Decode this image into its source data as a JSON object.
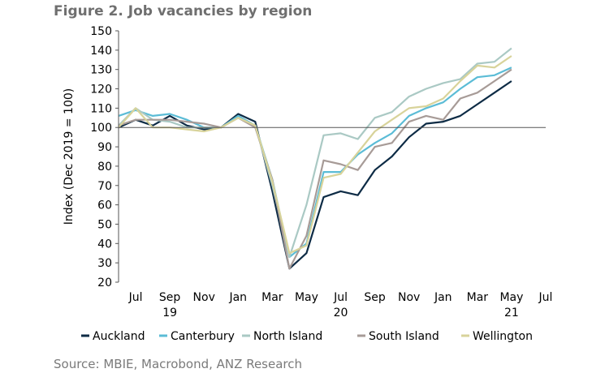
{
  "title": "Figure 2. Job vacancies by region",
  "source": "Source: MBIE, Macrobond, ANZ Research",
  "chart_data": {
    "type": "line",
    "ylabel": "Index (Dec 2019 = 100)",
    "ylim": [
      20,
      150
    ],
    "yticks": [
      20,
      30,
      40,
      50,
      60,
      70,
      80,
      90,
      100,
      110,
      120,
      130,
      140,
      150
    ],
    "reference_line": 100,
    "x": [
      "2019-06",
      "2019-07",
      "2019-08",
      "2019-09",
      "2019-10",
      "2019-11",
      "2019-12",
      "2020-01",
      "2020-02",
      "2020-03",
      "2020-04",
      "2020-05",
      "2020-06",
      "2020-07",
      "2020-08",
      "2020-09",
      "2020-10",
      "2020-11",
      "2020-12",
      "2021-01",
      "2021-02",
      "2021-03",
      "2021-04",
      "2021-05"
    ],
    "x_range": [
      "2019-06",
      "2021-07"
    ],
    "xticks": [
      "Jul",
      "Sep",
      "Nov",
      "Jan",
      "Mar",
      "May",
      "Jul",
      "Sep",
      "Nov",
      "Jan",
      "Mar",
      "May",
      "Jul"
    ],
    "xtick_months": [
      "2019-07",
      "2019-09",
      "2019-11",
      "2020-01",
      "2020-03",
      "2020-05",
      "2020-07",
      "2020-09",
      "2020-11",
      "2021-01",
      "2021-03",
      "2021-05",
      "2021-07"
    ],
    "year_labels": [
      {
        "label": "19",
        "month": "2019-09"
      },
      {
        "label": "20",
        "month": "2020-07"
      },
      {
        "label": "21",
        "month": "2021-05"
      }
    ],
    "legend_position": "bottom",
    "series": [
      {
        "name": "Auckland",
        "color": "#0d2b45",
        "values": [
          100,
          104,
          101,
          106,
          101,
          99,
          100,
          107,
          103,
          67,
          27,
          35,
          64,
          67,
          65,
          78,
          85,
          95,
          102,
          103,
          106,
          112,
          118,
          124
        ]
      },
      {
        "name": "Canterbury",
        "color": "#5bbcd6",
        "values": [
          106,
          109,
          106,
          107,
          104,
          100,
          100,
          106,
          101,
          73,
          33,
          40,
          77,
          77,
          86,
          92,
          97,
          106,
          110,
          113,
          120,
          126,
          127,
          131
        ]
      },
      {
        "name": "North Island",
        "color": "#aac9c4",
        "values": [
          101,
          110,
          104,
          103,
          100,
          100,
          100,
          105,
          101,
          70,
          33,
          60,
          96,
          97,
          94,
          105,
          108,
          116,
          120,
          123,
          125,
          133,
          134,
          141
        ]
      },
      {
        "name": "South Island",
        "color": "#a79b97",
        "values": [
          101,
          104,
          104,
          104,
          103,
          102,
          100,
          105,
          100,
          73,
          27,
          44,
          83,
          81,
          78,
          90,
          92,
          103,
          106,
          104,
          115,
          118,
          124,
          130
        ]
      },
      {
        "name": "Wellington",
        "color": "#d8d39a",
        "values": [
          100,
          110,
          100,
          100,
          99,
          98,
          100,
          105,
          101,
          72,
          35,
          39,
          74,
          76,
          87,
          98,
          104,
          110,
          111,
          115,
          124,
          132,
          131,
          137
        ]
      }
    ]
  }
}
